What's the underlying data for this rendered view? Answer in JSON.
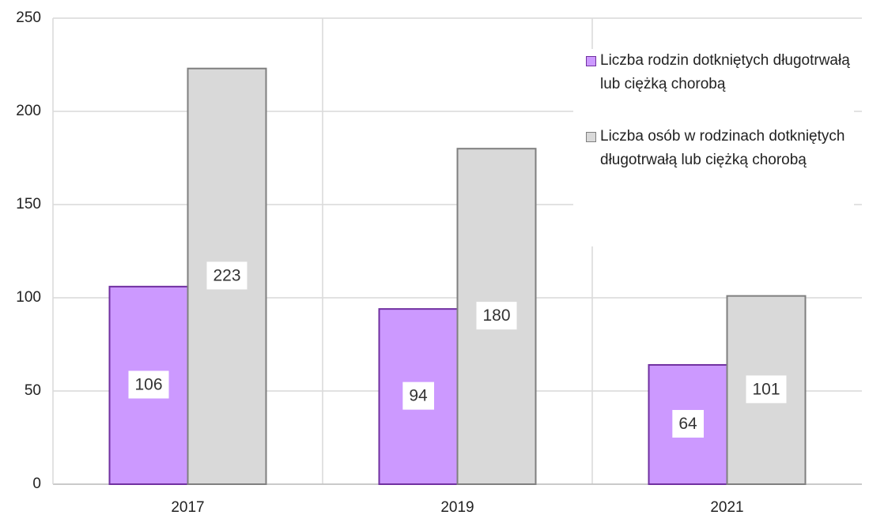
{
  "chart_data": {
    "type": "bar",
    "categories": [
      "2017",
      "2019",
      "2021"
    ],
    "series": [
      {
        "name": "Liczba rodzin dotkniętych długotrwałą lub ciężką chorobą",
        "color": "#cc99ff",
        "stroke": "#7030a0",
        "values": [
          106,
          94,
          64
        ]
      },
      {
        "name": "Liczba osób w rodzinach dotkniętych długotrwałą lub ciężką chorobą",
        "color": "#d9d9d9",
        "stroke": "#7f7f7f",
        "values": [
          223,
          180,
          101
        ]
      }
    ],
    "ylim": [
      0,
      250
    ],
    "yticks": [
      0,
      50,
      100,
      150,
      200,
      250
    ],
    "grid": true,
    "legend": "upper right"
  }
}
